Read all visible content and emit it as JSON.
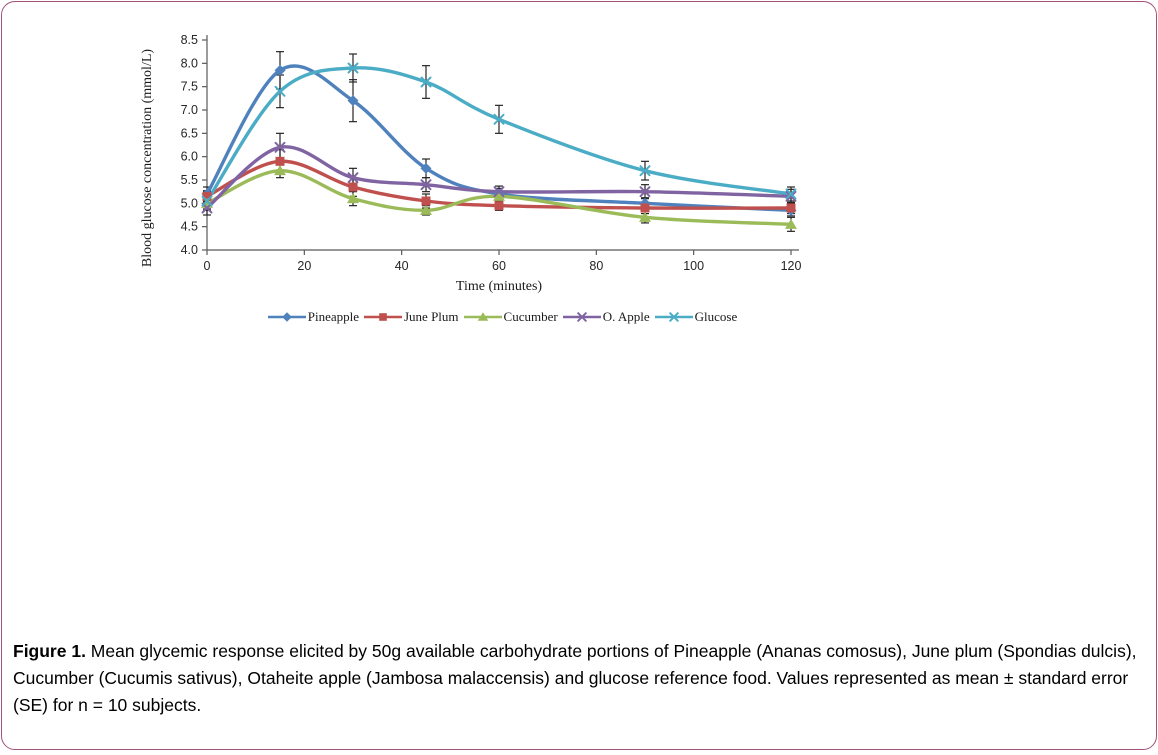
{
  "page": {
    "background": "#ffffff",
    "border_color": "#a2527a"
  },
  "figure_caption": {
    "label": "Figure 1.",
    "text": " Mean glycemic response elicited by 50g available carbohydrate portions of Pineapple (Ananas comosus), June plum (Spondias dulcis), Cucumber (Cucumis sativus), Otaheite apple (Jambosa malaccensis) and glucose reference food. Values represented as mean ± standard error (SE) for n = 10 subjects."
  },
  "chart_data": {
    "type": "line",
    "title": "",
    "xlabel": "Time (minutes)",
    "ylabel": "Blood glucose concentration (mmol/L)",
    "x": [
      0,
      15,
      30,
      45,
      60,
      90,
      120
    ],
    "xlim": [
      0,
      120
    ],
    "ylim": [
      4.0,
      8.5
    ],
    "x_tick_labels": [
      "0",
      "20",
      "40",
      "60",
      "80",
      "100",
      "120"
    ],
    "y_tick_labels": [
      "4.0",
      "4.5",
      "5.0",
      "5.5",
      "6.0",
      "6.5",
      "7.0",
      "7.5",
      "8.0",
      "8.5"
    ],
    "grid": false,
    "legend_position": "bottom",
    "error_bars": true,
    "error_bar_color": "#262626",
    "axis_color": "#595959",
    "smoothed_lines": true,
    "series": [
      {
        "name": "Pineapple",
        "color": "#4f81bd",
        "marker": "diamond",
        "values": [
          5.2,
          7.85,
          7.2,
          5.75,
          5.2,
          5.0,
          4.85
        ],
        "se": [
          0.15,
          0.4,
          0.45,
          0.2,
          0.12,
          0.12,
          0.12
        ]
      },
      {
        "name": "June Plum",
        "color": "#c0504d",
        "marker": "square",
        "values": [
          5.15,
          5.9,
          5.35,
          5.05,
          4.95,
          4.9,
          4.9
        ],
        "se": [
          0.12,
          0.25,
          0.2,
          0.15,
          0.1,
          0.12,
          0.12
        ]
      },
      {
        "name": "Cucumber",
        "color": "#9bbb59",
        "marker": "triangle",
        "values": [
          5.0,
          5.7,
          5.1,
          4.85,
          5.15,
          4.7,
          4.55
        ],
        "se": [
          0.12,
          0.15,
          0.15,
          0.1,
          0.1,
          0.12,
          0.15
        ]
      },
      {
        "name": "O. Apple",
        "color": "#8064a2",
        "marker": "x",
        "values": [
          4.9,
          6.2,
          5.55,
          5.4,
          5.25,
          5.25,
          5.15
        ],
        "se": [
          0.15,
          0.3,
          0.2,
          0.15,
          0.12,
          0.15,
          0.15
        ]
      },
      {
        "name": "Glucose",
        "color": "#4bacc6",
        "marker": "x",
        "values": [
          5.05,
          7.4,
          7.9,
          7.6,
          6.8,
          5.7,
          5.2
        ],
        "se": [
          0.2,
          0.35,
          0.3,
          0.35,
          0.3,
          0.2,
          0.15
        ]
      }
    ]
  }
}
